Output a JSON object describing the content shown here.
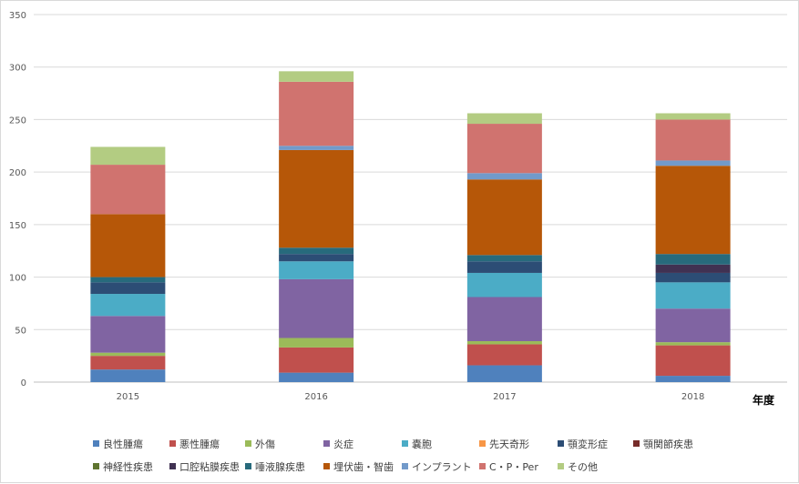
{
  "chart_data": {
    "type": "bar",
    "stacked": true,
    "title": "",
    "xlabel": "年度",
    "ylabel": "",
    "ylim": [
      0,
      350
    ],
    "yticks": [
      0,
      50,
      100,
      150,
      200,
      250,
      300,
      350
    ],
    "grid": true,
    "legend_position": "bottom",
    "categories": [
      "2015",
      "2016",
      "2017",
      "2018"
    ],
    "series": [
      {
        "name": "良性腫瘍",
        "color": "#4f81bd",
        "values": [
          12,
          9,
          16,
          6
        ]
      },
      {
        "name": "悪性腫瘍",
        "color": "#c0504d",
        "values": [
          13,
          24,
          20,
          29
        ]
      },
      {
        "name": "外傷",
        "color": "#9bbb59",
        "values": [
          3,
          9,
          3,
          3
        ]
      },
      {
        "name": "炎症",
        "color": "#8064a2",
        "values": [
          35,
          56,
          42,
          32
        ]
      },
      {
        "name": "嚢胞",
        "color": "#4bacc6",
        "values": [
          21,
          17,
          23,
          25
        ]
      },
      {
        "name": "先天奇形",
        "color": "#f79646",
        "values": [
          0,
          0,
          0,
          0
        ]
      },
      {
        "name": "顎変形症",
        "color": "#2c4d75",
        "values": [
          11,
          7,
          11,
          9
        ]
      },
      {
        "name": "顎関節疾患",
        "color": "#772c2a",
        "values": [
          0,
          0,
          0,
          0
        ]
      },
      {
        "name": "神経性疾患",
        "color": "#5f7530",
        "values": [
          0,
          0,
          0,
          0
        ]
      },
      {
        "name": "口腔粘膜疾患",
        "color": "#403152",
        "values": [
          0,
          0,
          0,
          8
        ]
      },
      {
        "name": "唾液腺疾患",
        "color": "#276a7c",
        "values": [
          5,
          6,
          6,
          10
        ]
      },
      {
        "name": "埋伏歯・智歯",
        "color": "#b65708",
        "values": [
          60,
          93,
          72,
          84
        ]
      },
      {
        "name": "インプラント",
        "color": "#729aca",
        "values": [
          0,
          4,
          6,
          5
        ]
      },
      {
        "name": "C・P・Per",
        "color": "#d0736f",
        "values": [
          47,
          61,
          47,
          39
        ]
      },
      {
        "name": "その他",
        "color": "#b3cc82",
        "values": [
          17,
          10,
          10,
          6
        ]
      }
    ]
  }
}
